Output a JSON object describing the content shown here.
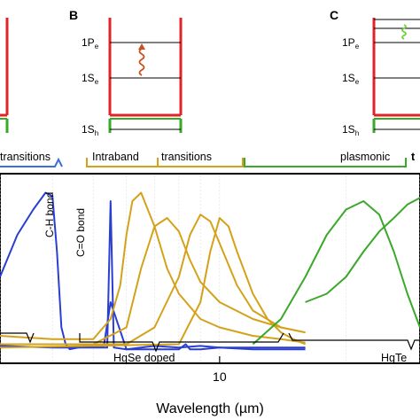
{
  "panels": {
    "b": {
      "letter": "B",
      "levels": [
        "1P",
        "1S",
        "1S"
      ],
      "subs": [
        "e",
        "e",
        "h"
      ]
    },
    "c": {
      "letter": "C",
      "levels": [
        "1P",
        "1S",
        "1S"
      ],
      "subs": [
        "e",
        "e",
        "h"
      ]
    }
  },
  "brackets": {
    "top_left": "transitions",
    "top_mid_a": "Intraband",
    "top_mid_b": "transitions",
    "top_right": "plasmonic",
    "top_right_cut": "t",
    "bottom_mid": "HgSe doped",
    "bottom_right": "HgTe"
  },
  "annotations": {
    "ch_bond": "C-H bond",
    "co_bond": "C=O bond"
  },
  "colors": {
    "red": "#e0232a",
    "green": "#3aa829",
    "blue": "#2a3fd1",
    "gold": "#d4a21a",
    "bracket_blue": "#3a6fd8",
    "wave_red": "#c8501e",
    "wave_green": "#6fcf3a"
  },
  "chart_data": {
    "type": "line",
    "x_scale": "log",
    "xlabel": "Wavelength (µm)",
    "x_ticks": [
      10
    ],
    "xlim": [
      3,
      30
    ],
    "ylim": [
      0,
      1
    ],
    "grid": "vertical minor lines",
    "series": [
      {
        "color": "blue",
        "x": [
          3.0,
          3.3,
          3.6,
          3.85,
          4.0,
          4.1,
          4.2,
          4.3,
          4.4,
          4.6,
          5.0,
          5.3,
          5.5,
          6.0,
          7.0,
          8.0,
          9.0,
          10.0,
          11.0,
          12.0,
          13.0,
          14.0,
          15.0,
          16.0
        ],
        "y": [
          0.45,
          0.7,
          0.85,
          0.95,
          0.93,
          0.6,
          0.15,
          0.05,
          0.02,
          0.03,
          0.04,
          0.04,
          0.3,
          0.02,
          0.04,
          0.03,
          0.04,
          0.03,
          0.03,
          0.03,
          0.03,
          0.03,
          0.03,
          0.03
        ]
      },
      {
        "color": "blue",
        "x": [
          3.0,
          4.0,
          5.0,
          5.4,
          5.5,
          5.6,
          6.0,
          7.0,
          8.0,
          8.3,
          8.5,
          9.0,
          10.0,
          12.0,
          14.0,
          16.0
        ],
        "y": [
          0.04,
          0.03,
          0.03,
          0.03,
          0.9,
          0.03,
          0.02,
          0.02,
          0.02,
          0.05,
          0.02,
          0.02,
          0.03,
          0.02,
          0.02,
          0.02
        ]
      },
      {
        "color": "gold",
        "x": [
          3.0,
          4.0,
          5.0,
          5.5,
          5.8,
          6.0,
          6.2,
          6.5,
          7.0,
          7.5,
          8.0,
          9.0,
          10.0,
          12.0,
          14.0,
          16.0
        ],
        "y": [
          0.1,
          0.08,
          0.08,
          0.2,
          0.4,
          0.7,
          0.9,
          0.95,
          0.75,
          0.5,
          0.35,
          0.2,
          0.15,
          0.1,
          0.08,
          0.06
        ]
      },
      {
        "color": "gold",
        "x": [
          3.0,
          5.0,
          6.0,
          6.5,
          7.0,
          7.5,
          8.0,
          8.5,
          9.0,
          10.0,
          12.0,
          14.0,
          16.0
        ],
        "y": [
          0.05,
          0.05,
          0.15,
          0.5,
          0.75,
          0.8,
          0.72,
          0.55,
          0.42,
          0.3,
          0.2,
          0.15,
          0.12
        ]
      },
      {
        "color": "gold",
        "x": [
          3.0,
          6.0,
          7.0,
          8.0,
          8.5,
          9.0,
          9.5,
          10.0,
          11.0,
          12.0,
          14.0,
          16.0
        ],
        "y": [
          0.05,
          0.05,
          0.15,
          0.45,
          0.7,
          0.82,
          0.78,
          0.65,
          0.4,
          0.25,
          0.15,
          0.12
        ]
      },
      {
        "color": "gold",
        "x": [
          3.0,
          8.0,
          9.0,
          9.5,
          10.0,
          10.5,
          11.0,
          12.0,
          13.0,
          14.0,
          15.0,
          16.0
        ],
        "y": [
          0.03,
          0.05,
          0.3,
          0.6,
          0.8,
          0.75,
          0.6,
          0.35,
          0.2,
          0.12,
          0.08,
          0.05
        ]
      },
      {
        "color": "green",
        "x": [
          12.0,
          14.0,
          16.0,
          18.0,
          20.0,
          22.0,
          24.0,
          26.0,
          28.0,
          30.0
        ],
        "y": [
          0.05,
          0.2,
          0.45,
          0.7,
          0.85,
          0.9,
          0.82,
          0.6,
          0.35,
          0.15
        ]
      },
      {
        "color": "green",
        "x": [
          16.0,
          18.0,
          20.0,
          22.0,
          24.0,
          26.0,
          28.0,
          30.0
        ],
        "y": [
          0.3,
          0.35,
          0.45,
          0.6,
          0.72,
          0.8,
          0.88,
          0.92
        ]
      }
    ]
  }
}
